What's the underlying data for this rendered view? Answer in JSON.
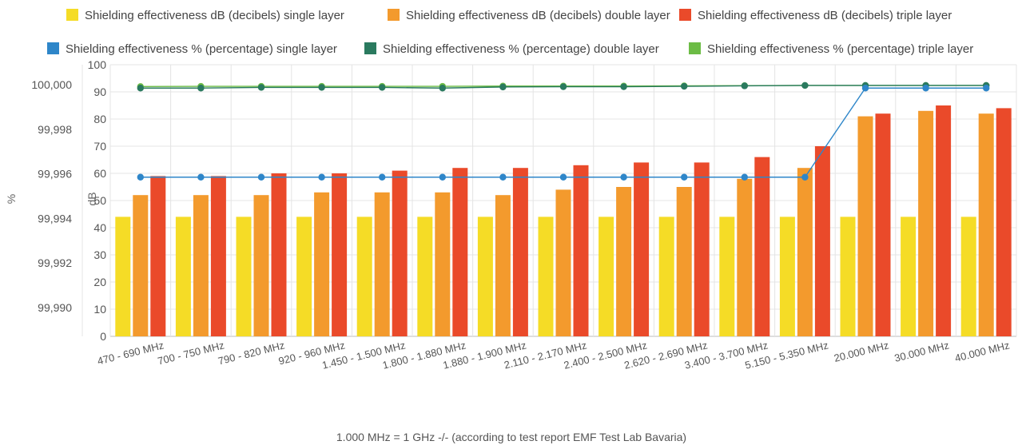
{
  "chart_data": {
    "type": "bar",
    "title": "",
    "footnote": "1.000 MHz = 1 GHz -/- (according to test report EMF Test Lab Bavaria)",
    "grid": true,
    "legend_position": "top",
    "categories": [
      "470 - 690 MHz",
      "700 - 750 MHz",
      "790 - 820 MHz",
      "920 - 960 MHz",
      "1.450 - 1.500 MHz",
      "1.800 - 1.880 MHz",
      "1.880 - 1.900 MHz",
      "2.110 - 2.170 MHz",
      "2.400 - 2.500 MHz",
      "2.620 - 2.690 MHz",
      "3.400 - 3.700 MHz",
      "5.150 - 5.350 MHz",
      "20.000 MHz",
      "30.000 MHz",
      "40.000 MHz"
    ],
    "axes": {
      "left_db": {
        "label": "dB",
        "range": [
          0,
          100
        ],
        "ticks": [
          0,
          10,
          20,
          30,
          40,
          50,
          60,
          70,
          80,
          90,
          100
        ]
      },
      "left_pct": {
        "label": "%",
        "range": [
          99.9887,
          100.0009
        ],
        "ticks": [
          "99,990",
          "99,992",
          "99,994",
          "99,996",
          "99,998",
          "100,000"
        ],
        "tick_values": [
          99.99,
          99.992,
          99.994,
          99.996,
          99.998,
          100.0
        ]
      }
    },
    "bar_series": [
      {
        "name": "Shielding effectiveness dB (decibels) single layer",
        "color": "#f5dc26",
        "values": [
          44,
          44,
          44,
          44,
          44,
          44,
          44,
          44,
          44,
          44,
          44,
          44,
          44,
          44,
          44
        ]
      },
      {
        "name": "Shielding effectiveness dB (decibels) double layer",
        "color": "#f39a2d",
        "values": [
          52,
          52,
          52,
          53,
          53,
          53,
          52,
          54,
          55,
          55,
          58,
          62,
          81,
          83,
          82
        ]
      },
      {
        "name": "Shielding effectiveness dB (decibels) triple layer",
        "color": "#ea4a2a",
        "values": [
          59,
          59,
          60,
          60,
          61,
          62,
          62,
          63,
          64,
          64,
          66,
          70,
          82,
          85,
          84
        ]
      }
    ],
    "line_series": [
      {
        "name": "Shielding effectiveness % (percentage) single layer",
        "color": "#2e86c9",
        "values": [
          99.99585,
          99.99585,
          99.99585,
          99.99585,
          99.99585,
          99.99585,
          99.99585,
          99.99585,
          99.99585,
          99.99585,
          99.99585,
          99.99585,
          99.99985,
          99.99985,
          99.99985
        ]
      },
      {
        "name": "Shielding effectiveness % (percentage) double layer",
        "color": "#2a7a5f",
        "values": [
          99.99985,
          99.99985,
          99.99988,
          99.99988,
          99.99988,
          99.99985,
          99.9999,
          99.99991,
          99.99991,
          99.99993,
          99.99995,
          99.99997,
          99.99997,
          99.99997,
          99.99997
        ]
      },
      {
        "name": "Shielding effectiveness % (percentage) triple layer",
        "color": "#6cbc45",
        "values": [
          99.99992,
          99.99993,
          99.99993,
          99.99993,
          99.99993,
          99.99993,
          99.99994,
          99.99994,
          99.99994,
          99.99995,
          99.99996,
          99.99997,
          99.99997,
          99.99997,
          99.99997
        ]
      }
    ]
  }
}
